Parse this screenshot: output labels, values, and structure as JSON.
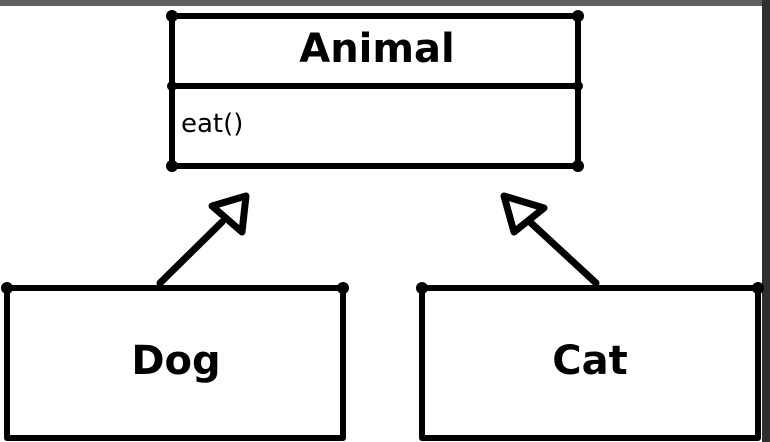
{
  "diagram": {
    "parent_class": {
      "name": "Animal",
      "methods": [
        "eat()"
      ]
    },
    "child_classes": [
      {
        "name": "Dog"
      },
      {
        "name": "Cat"
      }
    ],
    "relation": "inheritance",
    "colors": {
      "line": "#000000",
      "background": "#ffffff",
      "frame_top": "#5f5f5f",
      "frame_right": "#2f2f2f"
    }
  }
}
